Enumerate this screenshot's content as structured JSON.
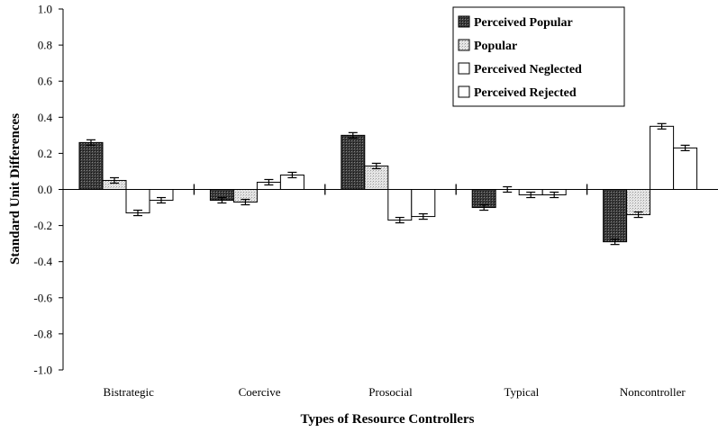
{
  "chart_data": {
    "type": "bar",
    "title": "",
    "xlabel": "Types of Resource Controllers",
    "ylabel": "Standard Unit Differences",
    "ylim": [
      -1.0,
      1.0
    ],
    "yticks": [
      "1.0",
      "0.8",
      "0.6",
      "0.4",
      "0.2",
      "0.0",
      "-0.2",
      "-0.4",
      "-0.6",
      "-0.8",
      "-1.0"
    ],
    "categories": [
      "Bistrategic",
      "Coercive",
      "Prosocial",
      "Typical",
      "Noncontroller"
    ],
    "legend_position": "top-right",
    "error_bars": true,
    "series": [
      {
        "name": "Perceived Popular",
        "fill": "dark-crosshatch",
        "values": [
          0.26,
          -0.06,
          0.3,
          -0.1,
          -0.29
        ],
        "errors": [
          0.015,
          0.015,
          0.015,
          0.015,
          0.015
        ]
      },
      {
        "name": "Popular",
        "fill": "light-stipple",
        "values": [
          0.05,
          -0.07,
          0.13,
          0.0,
          -0.14
        ],
        "errors": [
          0.015,
          0.015,
          0.015,
          0.015,
          0.015
        ]
      },
      {
        "name": "Perceived Neglected",
        "fill": "white",
        "values": [
          -0.13,
          0.04,
          -0.17,
          -0.03,
          0.35
        ],
        "errors": [
          0.015,
          0.015,
          0.015,
          0.015,
          0.015
        ]
      },
      {
        "name": "Perceived Rejected",
        "fill": "white",
        "values": [
          -0.06,
          0.08,
          -0.15,
          -0.03,
          0.23
        ],
        "errors": [
          0.015,
          0.015,
          0.015,
          0.015,
          0.015
        ]
      }
    ]
  }
}
